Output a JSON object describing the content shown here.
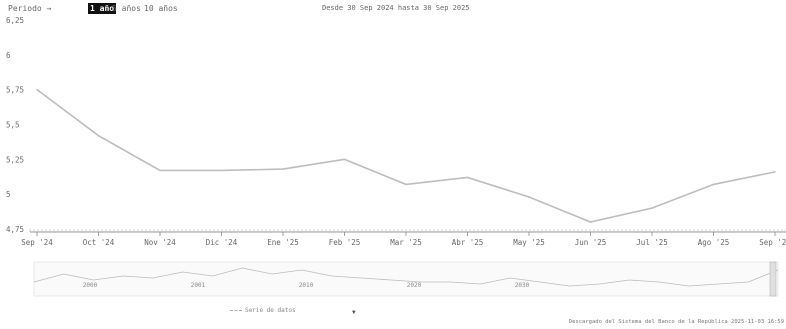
{
  "toolbar": {
    "period_label": "Periodo →",
    "periods": [
      "1 año",
      "5 años",
      "10 años"
    ],
    "active_period": "1 año",
    "date_range": "Desde 30 Sep 2024 hasta 30 Sep 2025"
  },
  "chart_data": {
    "type": "line",
    "categories": [
      "Sep '24",
      "Oct '24",
      "Nov '24",
      "Dic '24",
      "Ene '25",
      "Feb '25",
      "Mar '25",
      "Abr '25",
      "May '25",
      "Jun '25",
      "Jul '25",
      "Ago '25",
      "Sep '25"
    ],
    "series": [
      {
        "values": [
          5.75,
          5.42,
          5.17,
          5.17,
          5.18,
          5.25,
          5.07,
          5.12,
          4.98,
          4.8,
          4.9,
          5.07,
          5.16
        ]
      }
    ],
    "yticks": [
      "4,75",
      "5",
      "5,25",
      "5,5",
      "5,75",
      "6",
      "6,25"
    ],
    "ylim": [
      4.75,
      6.25
    ],
    "grid": false,
    "line_color": "#bdbdbd"
  },
  "navigator": {
    "years": [
      "2000",
      "2001",
      "2010",
      "2020",
      "2030"
    ],
    "legend_label": "Serie de datos",
    "series_values": [
      1.2,
      1.6,
      1.3,
      1.5,
      1.4,
      1.7,
      1.5,
      1.9,
      1.6,
      1.8,
      1.5,
      1.4,
      1.3,
      1.2,
      1.2,
      1.1,
      1.4,
      1.2,
      1.0,
      1.1,
      1.3,
      1.2,
      1.0,
      1.1,
      1.2,
      1.8
    ]
  },
  "footer": {
    "credit": "Descargado del Sistema del Banco de la República 2025-11-03 16:59"
  }
}
